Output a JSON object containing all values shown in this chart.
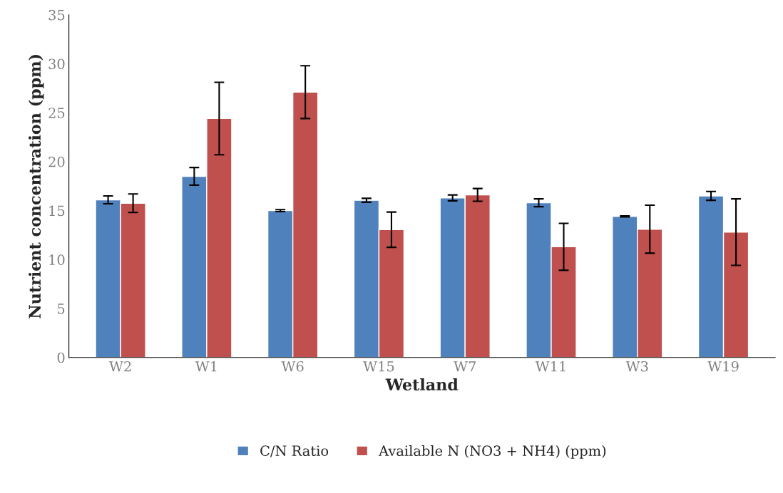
{
  "chart_data": {
    "type": "bar",
    "xlabel": "Wetland",
    "ylabel": "Nutrient concentration (ppm)",
    "categories": [
      "W2",
      "W1",
      "W6",
      "W15",
      "W7",
      "W11",
      "W3",
      "W19"
    ],
    "series": [
      {
        "name": "C/N Ratio",
        "color": "#4f81bd",
        "values": [
          16.1,
          18.5,
          15.0,
          16.05,
          16.3,
          15.8,
          14.4,
          16.5
        ],
        "errors": [
          0.4,
          0.9,
          0.1,
          0.2,
          0.3,
          0.4,
          0.05,
          0.45
        ]
      },
      {
        "name": "Available N (NO3 + NH4) (ppm)",
        "color": "#c0504d",
        "values": [
          15.75,
          24.4,
          27.1,
          13.05,
          16.6,
          11.3,
          13.1,
          12.8
        ],
        "errors": [
          0.95,
          3.7,
          2.7,
          1.8,
          0.65,
          2.4,
          2.45,
          3.4
        ]
      }
    ],
    "ylim": [
      0,
      35
    ],
    "yticks": [
      0,
      5,
      10,
      15,
      20,
      25,
      30,
      35
    ],
    "grid": false,
    "legend": "bottom"
  }
}
